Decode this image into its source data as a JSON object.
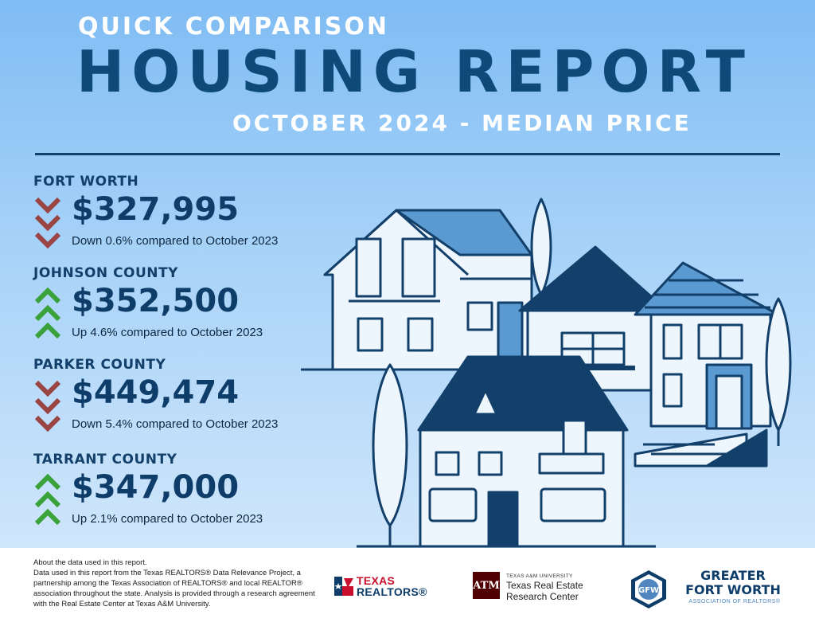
{
  "header": {
    "kicker": "QUICK COMPARISON",
    "title": "HOUSING REPORT",
    "subtitle": "OCTOBER 2024 - MEDIAN PRICE"
  },
  "regions": [
    {
      "name": "FORT WORTH",
      "price": "$327,995",
      "direction": "down",
      "change": "Down 0.6% compared to October 2023"
    },
    {
      "name": "JOHNSON COUNTY",
      "price": "$352,500",
      "direction": "up",
      "change": "Up 4.6% compared to October 2023"
    },
    {
      "name": "PARKER COUNTY",
      "price": "$449,474",
      "direction": "down",
      "change": "Down 5.4% compared to October 2023"
    },
    {
      "name": "TARRANT COUNTY",
      "price": "$347,000",
      "direction": "up",
      "change": "Up 2.1% compared to October 2023"
    }
  ],
  "colors": {
    "down_arrow": "#9a4444",
    "up_arrow": "#3aa23a",
    "navy": "#0d3d68",
    "house_fill": "#5b9ad0"
  },
  "footer": {
    "note_title": "About the data used in this report.",
    "note_body": "Data used in this report from the Texas REALTORS® Data Relevance Project, a partnership among the Texas Association of REALTORS® and local REALTOR® association throughout the state. Analysis is provided through a research agreement with the Real Estate Center at Texas A&M University.",
    "logos": {
      "texas_realtors": {
        "line1": "TEXAS",
        "line2": "REALTORS",
        "mark": "®"
      },
      "tamu": {
        "mark": "ATM",
        "small": "TEXAS A&M UNIVERSITY",
        "line1": "Texas Real Estate",
        "line2": "Research Center"
      },
      "gfw": {
        "line1": "GREATER",
        "line2": "FORT WORTH",
        "sub": "ASSOCIATION OF REALTORS®",
        "badge": "GFW"
      }
    }
  }
}
